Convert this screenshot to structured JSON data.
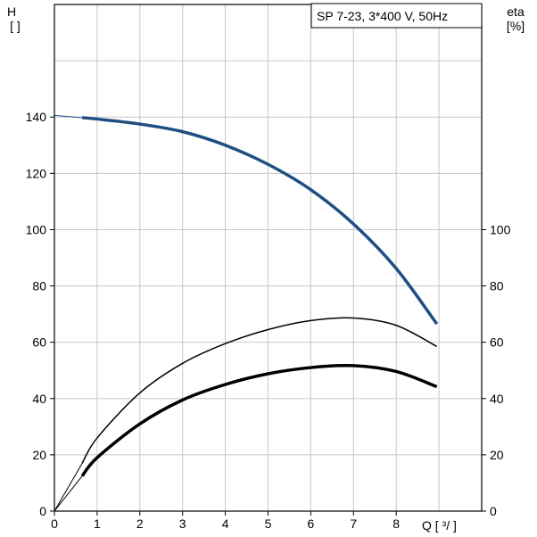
{
  "chart_data": {
    "type": "line",
    "title": "SP 7-23, 3*400 V, 50Hz",
    "left_axis": {
      "label_line1": "H",
      "label_line2": "[ ]",
      "ticks": [
        0,
        20,
        40,
        60,
        80,
        100,
        120,
        140
      ],
      "ylim": [
        0,
        180
      ]
    },
    "right_axis": {
      "label_line1": "eta",
      "label_line2": "[%]",
      "ticks": [
        0,
        20,
        40,
        60,
        80,
        100
      ]
    },
    "x_axis": {
      "ticks": [
        0,
        1,
        2,
        3,
        4,
        5,
        6,
        7,
        8
      ],
      "label": "Q [ ³/ ]",
      "xlim": [
        0,
        10
      ]
    },
    "grid": true,
    "series": [
      {
        "id": "head",
        "color": "#1f4e82",
        "width": 3.5,
        "extension": [
          [
            0,
            140.6
          ],
          [
            0.65,
            139.8
          ]
        ],
        "values": [
          [
            0.65,
            139.8
          ],
          [
            1,
            139.3
          ],
          [
            2,
            137.5
          ],
          [
            3,
            134.8
          ],
          [
            4,
            130.0
          ],
          [
            5,
            123.2
          ],
          [
            6,
            114.2
          ],
          [
            7,
            102.0
          ],
          [
            8,
            86.2
          ],
          [
            8.95,
            66.5
          ]
        ]
      },
      {
        "id": "efficiency-total",
        "color": "#000000",
        "width": 3.5,
        "extension": [
          [
            0,
            0
          ],
          [
            0.65,
            12.5
          ]
        ],
        "values": [
          [
            0.65,
            12.5
          ],
          [
            1,
            19.0
          ],
          [
            2,
            31.0
          ],
          [
            3,
            39.5
          ],
          [
            4,
            45.0
          ],
          [
            5,
            48.8
          ],
          [
            6,
            51.0
          ],
          [
            7,
            51.7
          ],
          [
            8,
            49.6
          ],
          [
            8.95,
            44.2
          ]
        ]
      },
      {
        "id": "efficiency-pump",
        "color": "#000000",
        "width": 1.5,
        "extension": [
          [
            0,
            0
          ],
          [
            0.65,
            17.0
          ]
        ],
        "values": [
          [
            0.65,
            17.0
          ],
          [
            1,
            26.0
          ],
          [
            2,
            42.0
          ],
          [
            3,
            52.5
          ],
          [
            4,
            59.5
          ],
          [
            5,
            64.5
          ],
          [
            6,
            67.7
          ],
          [
            7,
            68.6
          ],
          [
            8,
            66.0
          ],
          [
            8.95,
            58.5
          ]
        ]
      }
    ]
  }
}
